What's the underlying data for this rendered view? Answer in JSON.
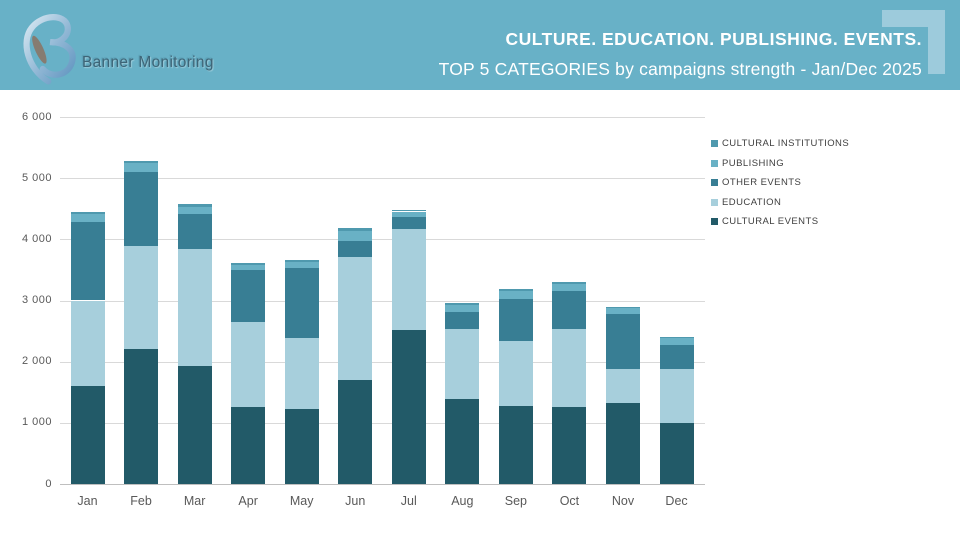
{
  "header": {
    "logo_text": "Banner Monitoring",
    "logo_icon": "banner-monitoring-b-icon",
    "title": "CULTURE. EDUCATION. PUBLISHING. EVENTS.",
    "subtitle": "TOP 5 CATEGORIES by campaigns strength - Jan/Dec 2025",
    "background_color": "#68b1c7",
    "corner_accent_color": "#9dcbdc"
  },
  "chart_data": {
    "type": "bar",
    "stacked": true,
    "title": "TOP 5 CATEGORIES by campaigns strength - Jan/Dec 2025",
    "categories": [
      "Jan",
      "Feb",
      "Mar",
      "Apr",
      "May",
      "Jun",
      "Jul",
      "Aug",
      "Sep",
      "Oct",
      "Nov",
      "Dec"
    ],
    "series": [
      {
        "name": "CULTURAL EVENTS",
        "color": "#225a68",
        "values": [
          1600,
          2210,
          1935,
          1255,
          1230,
          1700,
          2520,
          1390,
          1280,
          1265,
          1320,
          990
        ]
      },
      {
        "name": "EDUCATION",
        "color": "#a7cfdc",
        "values": [
          1400,
          1675,
          1900,
          1390,
          1160,
          2010,
          1650,
          1150,
          1050,
          1270,
          560,
          890
        ]
      },
      {
        "name": "OTHER EVENTS",
        "color": "#387e94",
        "values": [
          1280,
          1215,
          585,
          855,
          1140,
          270,
          190,
          270,
          700,
          615,
          900,
          385
        ]
      },
      {
        "name": "PUBLISHING",
        "color": "#69b1c5",
        "values": [
          130,
          140,
          110,
          80,
          105,
          160,
          95,
          120,
          130,
          120,
          90,
          115
        ]
      },
      {
        "name": "CULTURAL INSTITUTIONS",
        "color": "#4f99ae",
        "values": [
          40,
          40,
          40,
          30,
          35,
          40,
          30,
          35,
          35,
          30,
          30,
          30
        ]
      }
    ],
    "legend": [
      "CULTURAL INSTITUTIONS",
      "PUBLISHING",
      "OTHER EVENTS",
      "EDUCATION",
      "CULTURAL EVENTS"
    ],
    "legend_position": "right",
    "ylim": [
      0,
      6000
    ],
    "ytick_step": 1000,
    "ytick_labels": [
      "0",
      "1 000",
      "2 000",
      "3 000",
      "4 000",
      "5 000",
      "6 000"
    ],
    "grid": true,
    "xlabel": "",
    "ylabel": ""
  }
}
